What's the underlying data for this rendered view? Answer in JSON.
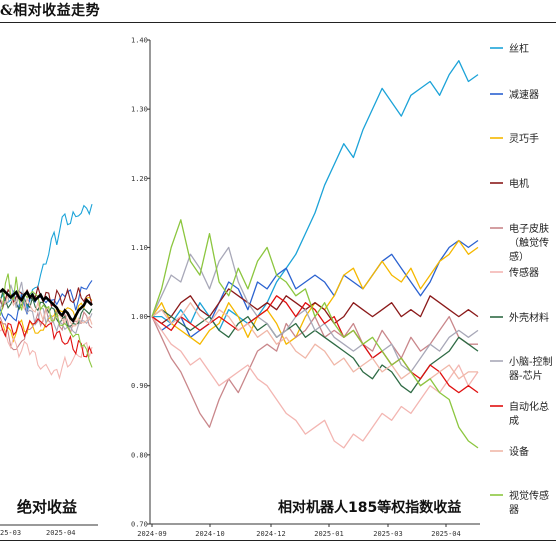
{
  "header": {
    "title": "&相对收益走势"
  },
  "left_panel": {
    "label": "绝对收益",
    "x_ticks": [
      "25-03",
      "2025-04"
    ]
  },
  "chart_data": {
    "type": "line",
    "title": "相对机器人185等权指数收益",
    "ylim": [
      0.7,
      1.4
    ],
    "y_ticks": [
      "1.40",
      "1.30",
      "1.20",
      "1.10",
      "1.00",
      "0.90",
      "0.80",
      "0.70"
    ],
    "x_ticks": [
      "2024-09",
      "2024-10",
      "2024-12",
      "2025-01",
      "2025-03",
      "2025-04"
    ],
    "grid": false,
    "legend_position": "right",
    "series": [
      {
        "name": "丝杠",
        "color": "#1ca3d8",
        "values": [
          1.0,
          1.0,
          0.99,
          1.01,
          0.99,
          1.02,
          1.0,
          0.98,
          1.01,
          1.0,
          0.99,
          1.0,
          1.02,
          1.05,
          1.07,
          1.09,
          1.12,
          1.15,
          1.19,
          1.22,
          1.25,
          1.23,
          1.27,
          1.3,
          1.33,
          1.31,
          1.29,
          1.32,
          1.33,
          1.34,
          1.32,
          1.35,
          1.37,
          1.34,
          1.35
        ]
      },
      {
        "name": "减速器",
        "color": "#2b62d0",
        "values": [
          1.0,
          0.98,
          0.99,
          1.0,
          0.97,
          0.98,
          0.99,
          1.02,
          1.05,
          1.04,
          1.01,
          1.05,
          1.04,
          1.06,
          1.07,
          1.04,
          1.05,
          1.06,
          1.05,
          1.03,
          1.06,
          1.05,
          1.04,
          1.06,
          1.08,
          1.09,
          1.07,
          1.05,
          1.03,
          1.05,
          1.08,
          1.1,
          1.11,
          1.1,
          1.11
        ]
      },
      {
        "name": "灵巧手",
        "color": "#f5b800",
        "values": [
          1.0,
          1.02,
          0.99,
          0.98,
          0.97,
          0.96,
          0.98,
          0.99,
          1.02,
          1.0,
          0.97,
          1.0,
          1.01,
          0.99,
          0.96,
          0.97,
          1.0,
          1.02,
          1.01,
          1.03,
          1.06,
          1.07,
          1.04,
          1.06,
          1.08,
          1.06,
          1.05,
          1.07,
          1.04,
          1.06,
          1.08,
          1.09,
          1.11,
          1.09,
          1.1
        ]
      },
      {
        "name": "电机",
        "color": "#8b1a1a",
        "values": [
          1.0,
          0.99,
          1.0,
          1.02,
          1.03,
          1.01,
          1.0,
          1.02,
          1.04,
          1.03,
          1.02,
          1.01,
          1.02,
          1.01,
          1.03,
          1.02,
          1.01,
          1.02,
          1.01,
          0.99,
          1.0,
          1.02,
          1.01,
          1.0,
          1.01,
          1.02,
          1.0,
          1.01,
          1.0,
          1.03,
          1.02,
          1.01,
          1.0,
          1.01,
          1.0
        ]
      },
      {
        "name": "电子皮肤（触觉传感）",
        "color": "#c9878b",
        "values": [
          1.0,
          0.97,
          0.94,
          0.92,
          0.89,
          0.86,
          0.84,
          0.88,
          0.91,
          0.89,
          0.92,
          0.95,
          0.96,
          0.95,
          0.99,
          0.97,
          0.98,
          1.0,
          0.97,
          0.98,
          0.97,
          0.99,
          0.96,
          0.95,
          0.98,
          0.96,
          0.94,
          0.97,
          0.95,
          0.96,
          0.98,
          1.0,
          0.97,
          0.96,
          0.96
        ]
      },
      {
        "name": "传感器",
        "color": "#f3b6b2",
        "values": [
          1.0,
          0.98,
          0.96,
          0.95,
          0.93,
          0.94,
          0.92,
          0.9,
          0.91,
          0.92,
          0.93,
          0.91,
          0.9,
          0.88,
          0.86,
          0.85,
          0.83,
          0.84,
          0.85,
          0.82,
          0.81,
          0.83,
          0.82,
          0.84,
          0.86,
          0.85,
          0.87,
          0.86,
          0.88,
          0.9,
          0.89,
          0.91,
          0.93,
          0.9,
          0.92
        ]
      },
      {
        "name": "外壳材料",
        "color": "#2f6b45",
        "values": [
          1.0,
          1.01,
          1.0,
          0.99,
          0.98,
          0.99,
          1.0,
          0.98,
          0.97,
          0.99,
          1.0,
          0.98,
          0.99,
          0.97,
          0.98,
          0.99,
          0.97,
          0.98,
          0.97,
          0.96,
          0.95,
          0.94,
          0.92,
          0.91,
          0.93,
          0.92,
          0.9,
          0.89,
          0.91,
          0.93,
          0.94,
          0.95,
          0.97,
          0.96,
          0.95
        ]
      },
      {
        "name": "小脑-控制器-芯片",
        "color": "#a8a8b8",
        "values": [
          1.0,
          1.03,
          1.06,
          1.05,
          1.09,
          1.07,
          1.04,
          1.08,
          1.1,
          1.05,
          1.02,
          1.0,
          0.99,
          0.97,
          0.98,
          1.0,
          1.01,
          0.98,
          0.99,
          0.97,
          0.96,
          0.95,
          0.96,
          0.94,
          0.95,
          0.96,
          0.93,
          0.92,
          0.94,
          0.96,
          0.95,
          0.97,
          0.98,
          0.97,
          0.98
        ]
      },
      {
        "name": "自动化总成",
        "color": "#e01010",
        "values": [
          1.0,
          0.99,
          0.98,
          1.0,
          0.99,
          0.98,
          0.99,
          1.0,
          0.99,
          0.98,
          0.99,
          1.0,
          1.01,
          1.03,
          1.02,
          1.0,
          1.02,
          1.01,
          0.99,
          1.0,
          0.97,
          0.98,
          0.96,
          0.94,
          0.95,
          0.93,
          0.94,
          0.92,
          0.91,
          0.93,
          0.92,
          0.9,
          0.89,
          0.9,
          0.89
        ]
      },
      {
        "name": "设备",
        "color": "#f0b7a8",
        "values": [
          1.0,
          1.01,
          0.99,
          1.0,
          1.02,
          1.0,
          0.99,
          1.01,
          1.0,
          0.98,
          0.99,
          0.97,
          0.98,
          0.96,
          0.97,
          0.95,
          0.94,
          0.96,
          0.95,
          0.93,
          0.94,
          0.92,
          0.93,
          0.94,
          0.92,
          0.93,
          0.91,
          0.92,
          0.9,
          0.91,
          0.92,
          0.93,
          0.91,
          0.92,
          0.92
        ]
      },
      {
        "name": "视觉传感器",
        "color": "#8cc63f",
        "values": [
          1.0,
          1.04,
          1.1,
          1.14,
          1.08,
          1.06,
          1.12,
          1.05,
          1.03,
          1.07,
          1.04,
          1.08,
          1.1,
          1.06,
          1.05,
          1.03,
          1.04,
          1.0,
          1.02,
          0.99,
          0.97,
          0.98,
          0.96,
          0.97,
          0.95,
          0.93,
          0.94,
          0.92,
          0.9,
          0.91,
          0.89,
          0.88,
          0.84,
          0.82,
          0.81
        ]
      }
    ]
  },
  "legend_display": [
    {
      "lines": [
        "丝杠"
      ]
    },
    {
      "lines": [
        "减速器"
      ]
    },
    {
      "lines": [
        "灵巧手"
      ]
    },
    {
      "lines": [
        "电机"
      ]
    },
    {
      "lines": [
        "电子皮肤",
        "（触觉传",
        "感）"
      ]
    },
    {
      "lines": [
        "传感器"
      ]
    },
    {
      "lines": [
        "外壳材料"
      ]
    },
    {
      "lines": [
        "小脑-控制",
        "器-芯片"
      ]
    },
    {
      "lines": [
        "自动化总",
        "成"
      ]
    },
    {
      "lines": [
        "设备"
      ]
    },
    {
      "lines": [
        "视觉传感",
        "器"
      ]
    }
  ]
}
